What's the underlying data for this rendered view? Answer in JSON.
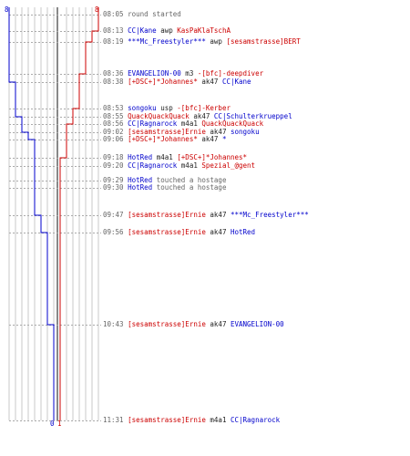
{
  "colors": {
    "blue_team": "#0000cc",
    "red_team": "#cc0000",
    "timestamp": "#666666"
  },
  "top_counts": {
    "blue": "8",
    "red": "8"
  },
  "bottom_counts": {
    "blue": "0",
    "red": "1"
  },
  "events": [
    {
      "time": "08:05",
      "parts": [
        {
          "text": "round started",
          "cls": "gray"
        }
      ]
    },
    {
      "time": "08:13",
      "parts": [
        {
          "text": "CC|Kane",
          "cls": "blue"
        },
        {
          "text": " awp ",
          "cls": "blk"
        },
        {
          "text": "KasPaKlaTschA",
          "cls": "red"
        }
      ]
    },
    {
      "time": "08:19",
      "parts": [
        {
          "text": "***Mc_Freestyler***",
          "cls": "blue"
        },
        {
          "text": " awp ",
          "cls": "blk"
        },
        {
          "text": "[sesamstrasse]BERT",
          "cls": "red"
        }
      ]
    },
    {
      "time": "08:36",
      "parts": [
        {
          "text": "EVANGELION-00",
          "cls": "blue"
        },
        {
          "text": " m3 ",
          "cls": "blk"
        },
        {
          "text": "-[bfc]-deepdiver",
          "cls": "red"
        }
      ]
    },
    {
      "time": "08:38",
      "parts": [
        {
          "text": "[+DSC+]*Johannes*",
          "cls": "red"
        },
        {
          "text": " ak47 ",
          "cls": "blk"
        },
        {
          "text": "CC|Kane",
          "cls": "blue"
        }
      ]
    },
    {
      "time": "08:53",
      "parts": [
        {
          "text": "songoku",
          "cls": "blue"
        },
        {
          "text": " usp ",
          "cls": "blk"
        },
        {
          "text": "-[bfc]-Kerber",
          "cls": "red"
        }
      ]
    },
    {
      "time": "08:55",
      "parts": [
        {
          "text": "QuackQuackQuack",
          "cls": "red"
        },
        {
          "text": " ak47 ",
          "cls": "blk"
        },
        {
          "text": "CC|Schulterkrueppel",
          "cls": "blue"
        }
      ]
    },
    {
      "time": "08:56",
      "parts": [
        {
          "text": "CC|Ragnarock",
          "cls": "blue"
        },
        {
          "text": " m4a1 ",
          "cls": "blk"
        },
        {
          "text": "QuackQuackQuack",
          "cls": "red"
        }
      ]
    },
    {
      "time": "09:02",
      "parts": [
        {
          "text": "[sesamstrasse]Ernie",
          "cls": "red"
        },
        {
          "text": " ak47 ",
          "cls": "blk"
        },
        {
          "text": "songoku",
          "cls": "blue"
        }
      ]
    },
    {
      "time": "09:06",
      "parts": [
        {
          "text": "[+DSC+]*Johannes*",
          "cls": "red"
        },
        {
          "text": " ak47 ",
          "cls": "blk"
        },
        {
          "text": "*",
          "cls": "blue"
        }
      ]
    },
    {
      "time": "09:18",
      "parts": [
        {
          "text": "HotRed",
          "cls": "blue"
        },
        {
          "text": " m4a1 ",
          "cls": "blk"
        },
        {
          "text": "[+DSC+]*Johannes*",
          "cls": "red"
        }
      ]
    },
    {
      "time": "09:20",
      "parts": [
        {
          "text": "CC|Ragnarock",
          "cls": "blue"
        },
        {
          "text": " m4a1 ",
          "cls": "blk"
        },
        {
          "text": "Spezial_@gent",
          "cls": "red"
        }
      ]
    },
    {
      "time": "09:29",
      "parts": [
        {
          "text": "HotRed",
          "cls": "blue"
        },
        {
          "text": " touched a hostage",
          "cls": "gray"
        }
      ]
    },
    {
      "time": "09:30",
      "parts": [
        {
          "text": "HotRed",
          "cls": "blue"
        },
        {
          "text": " touched a hostage",
          "cls": "gray"
        }
      ]
    },
    {
      "time": "09:47",
      "parts": [
        {
          "text": "[sesamstrasse]Ernie",
          "cls": "red"
        },
        {
          "text": " ak47 ",
          "cls": "blk"
        },
        {
          "text": "***Mc_Freestyler***",
          "cls": "blue"
        }
      ]
    },
    {
      "time": "09:56",
      "parts": [
        {
          "text": "[sesamstrasse]Ernie",
          "cls": "red"
        },
        {
          "text": " ak47 ",
          "cls": "blk"
        },
        {
          "text": "HotRed",
          "cls": "blue"
        }
      ]
    },
    {
      "time": "10:43",
      "parts": [
        {
          "text": "[sesamstrasse]Ernie",
          "cls": "red"
        },
        {
          "text": " ak47 ",
          "cls": "blk"
        },
        {
          "text": "EVANGELION-00",
          "cls": "blue"
        }
      ]
    },
    {
      "time": "11:31",
      "parts": [
        {
          "text": "[sesamstrasse]Ernie",
          "cls": "red"
        },
        {
          "text": " m4a1 ",
          "cls": "blk"
        },
        {
          "text": "CC|Ragnarock",
          "cls": "blue"
        }
      ]
    }
  ]
}
